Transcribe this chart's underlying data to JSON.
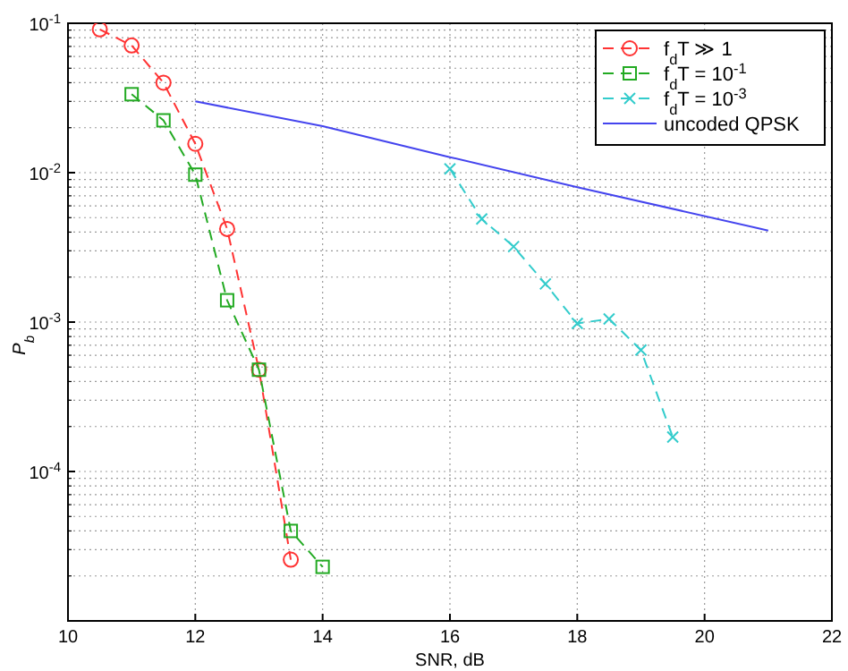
{
  "chart_data": {
    "type": "line",
    "xlabel": "SNR, dB",
    "ylabel": "P$_{b}$",
    "log": "y",
    "grid": true,
    "legend": "top right",
    "xlim": [
      10,
      22
    ],
    "xticks": [
      10,
      12,
      14,
      16,
      18,
      20,
      22
    ],
    "ylim": [
      1e-05,
      0.1
    ],
    "yticks": [
      {
        "value": 1e-05,
        "label": null
      },
      {
        "value": 0.0001,
        "label": "10$^{-4}$"
      },
      {
        "value": 0.001,
        "label": "10$^{-3}$"
      },
      {
        "value": 0.01,
        "label": "10$^{-2}$"
      },
      {
        "value": 0.1,
        "label": "10$^{-1}$"
      }
    ],
    "series": [
      {
        "name": "f$_{d}$T ≫ 1",
        "color": "#ff3333",
        "marker": "circle",
        "line_style": "dashed",
        "x": [
          10.5,
          11,
          11.5,
          12,
          12.5,
          13,
          13.5
        ],
        "values": [
          0.091,
          0.071,
          0.04,
          0.0156,
          0.0042,
          0.00048,
          2.57e-05
        ]
      },
      {
        "name": "f$_{d}$T = 10$^{-1}$",
        "color": "#22aa22",
        "marker": "square",
        "line_style": "dashed",
        "x": [
          11,
          11.5,
          12,
          12.5,
          13,
          13.5,
          14
        ],
        "values": [
          0.0335,
          0.0224,
          0.0097,
          0.0014,
          0.00048,
          4e-05,
          2.3e-05
        ]
      },
      {
        "name": "f$_{d}$T = 10$^{-3}$",
        "color": "#33cccc",
        "marker": "cross",
        "line_style": "dashed",
        "x": [
          16,
          16.5,
          17,
          17.5,
          18,
          18.5,
          19,
          19.5
        ],
        "values": [
          0.0106,
          0.0049,
          0.0032,
          0.0018,
          0.00098,
          0.00105,
          0.00065,
          0.00017
        ]
      },
      {
        "name": "uncoded QPSK",
        "color": "#4444ee",
        "marker": "none",
        "line_style": "solid",
        "x": [
          12,
          14,
          16,
          18,
          21
        ],
        "values": [
          0.03,
          0.0205,
          0.0127,
          0.008,
          0.0041
        ]
      }
    ]
  }
}
